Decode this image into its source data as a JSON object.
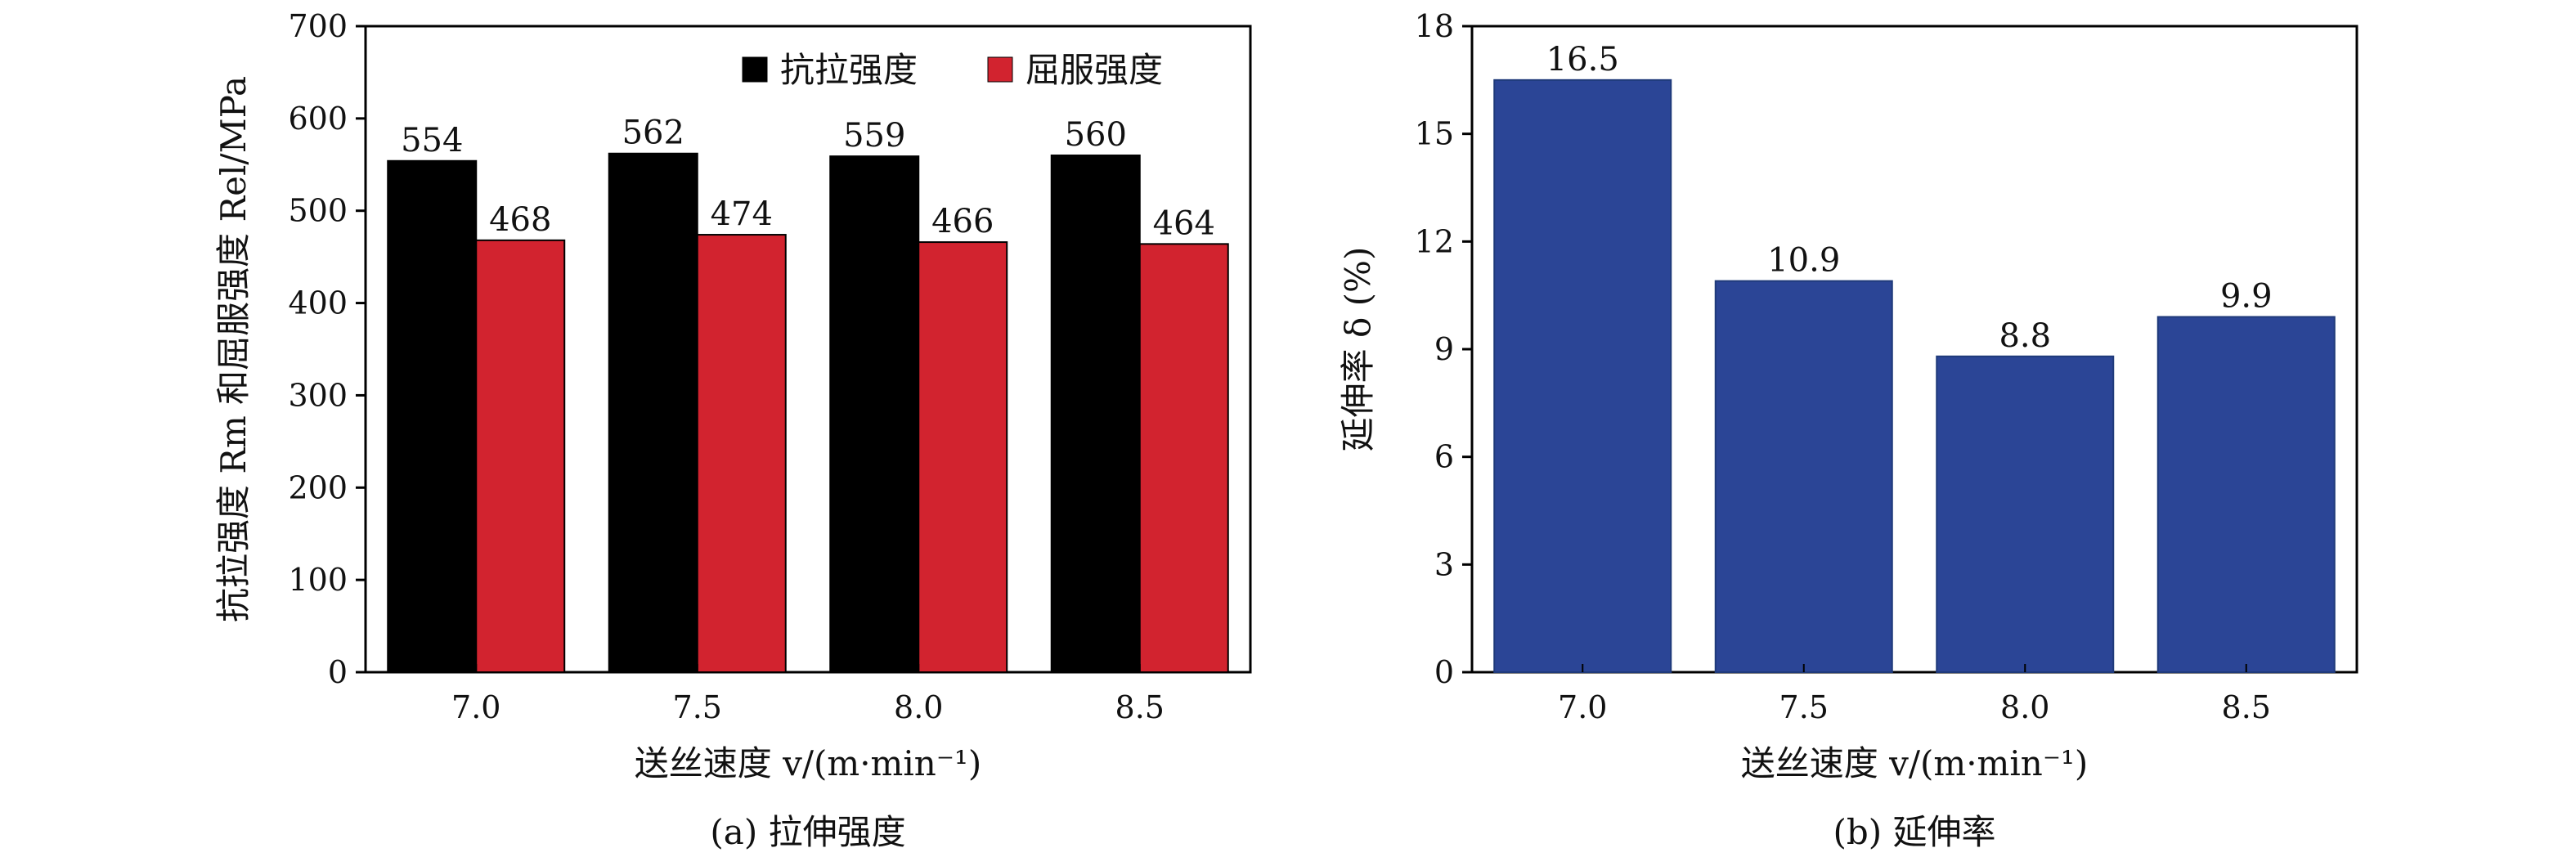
{
  "chart_data": [
    {
      "type": "bar",
      "caption": "(a) 拉伸强度",
      "xlabel": "送丝速度 v/(m·min⁻¹)",
      "ylabel": "抗拉强度 Rm 和屈服强度 Rel/MPa",
      "categories": [
        "7.0",
        "7.5",
        "8.0",
        "8.5"
      ],
      "ylim": [
        0,
        700
      ],
      "yticks": [
        0,
        100,
        200,
        300,
        400,
        500,
        600,
        700
      ],
      "legend_position": "top-right",
      "series": [
        {
          "name": "抗拉强度",
          "color": "#000000",
          "values": [
            554,
            562,
            559,
            560
          ]
        },
        {
          "name": "屈服强度",
          "color": "#d2232f",
          "values": [
            468,
            474,
            466,
            464
          ]
        }
      ]
    },
    {
      "type": "bar",
      "caption": "(b) 延伸率",
      "xlabel": "送丝速度 v/(m·min⁻¹)",
      "ylabel": "延伸率 δ (%)",
      "categories": [
        "7.0",
        "7.5",
        "8.0",
        "8.5"
      ],
      "ylim": [
        0,
        18
      ],
      "yticks": [
        0,
        3,
        6,
        9,
        12,
        15,
        18
      ],
      "series": [
        {
          "color": "#2b4596",
          "values": [
            16.5,
            10.9,
            8.8,
            9.9
          ]
        }
      ]
    }
  ]
}
